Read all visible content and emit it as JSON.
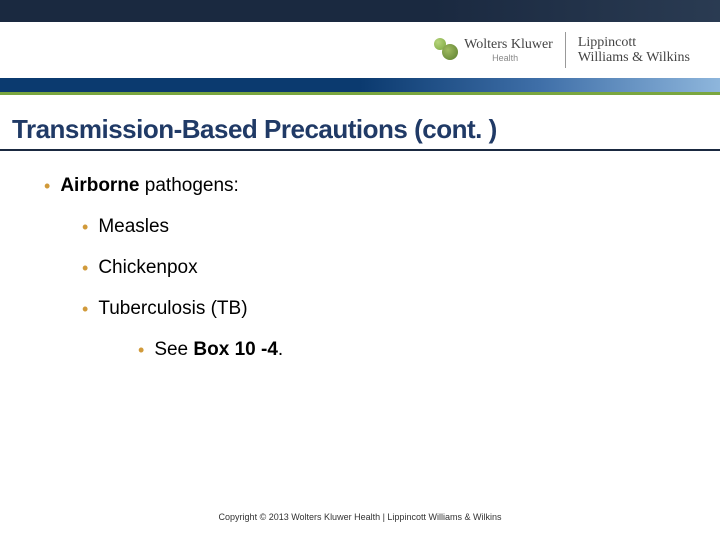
{
  "header": {
    "brand1_main": "Wolters Kluwer",
    "brand1_sub": "Health",
    "brand2_line1": "Lippincott",
    "brand2_line2": "Williams & Wilkins"
  },
  "title": "Transmission-Based Precautions (cont. )",
  "bullets": {
    "l1_strong": "Airborne",
    "l1_rest": " pathogens:",
    "items": [
      "Measles",
      "Chickenpox",
      "Tuberculosis (TB)"
    ],
    "l3_pre": "See ",
    "l3_strong": "Box 10 -4",
    "l3_post": "."
  },
  "footer": "Copyright © 2013 Wolters Kluwer Health | Lippincott Williams & Wilkins",
  "colors": {
    "bullet": "#d19a3a",
    "title": "#203a66",
    "header_dark": "#1a2940",
    "header_blue": "#0b3a6f",
    "header_green": "#7aa63f"
  }
}
